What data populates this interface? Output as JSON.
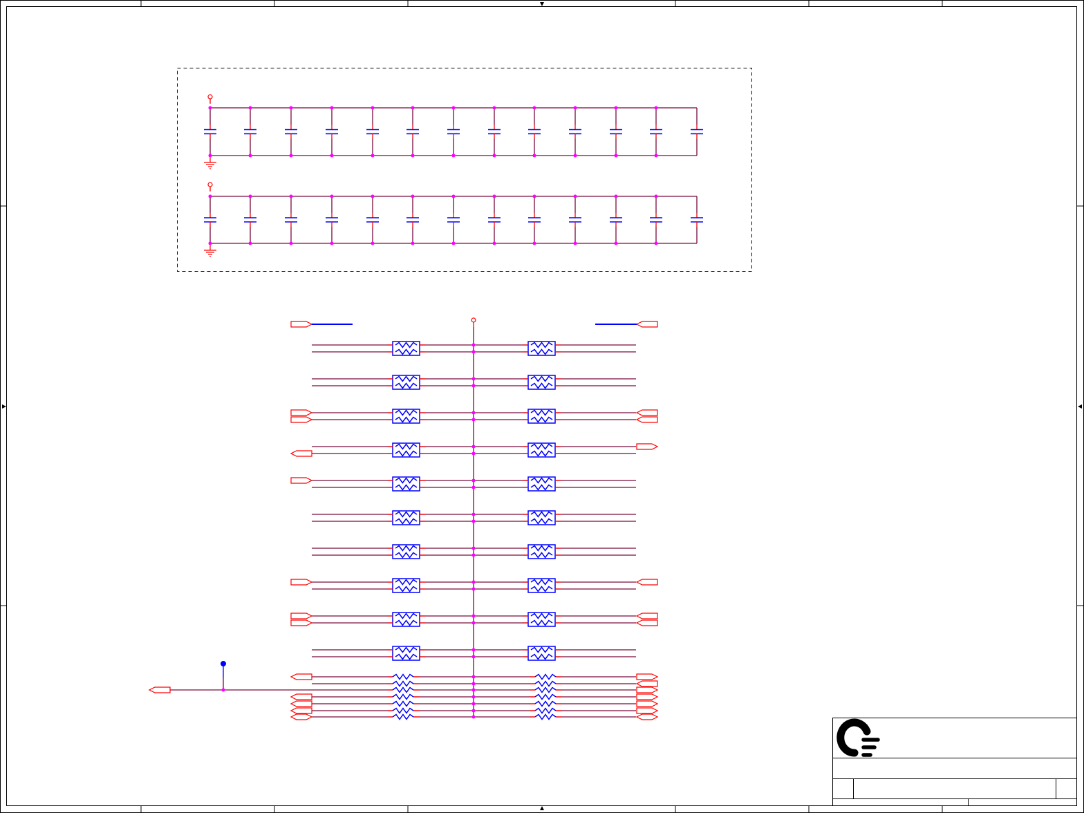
{
  "colors": {
    "wire": "#7a0a3c",
    "junction": "#ff00ff",
    "component": "#0000ff",
    "pin": "#ff0000",
    "port": "#ff0000",
    "frame": "#000000",
    "selection_box": "#000000"
  },
  "icons": {
    "logo": "company-logo-c-with-bars",
    "power": "power-circle-icon",
    "ground": "ground-icon",
    "port": "net-port-icon",
    "probe": "probe-dot-icon"
  }
}
